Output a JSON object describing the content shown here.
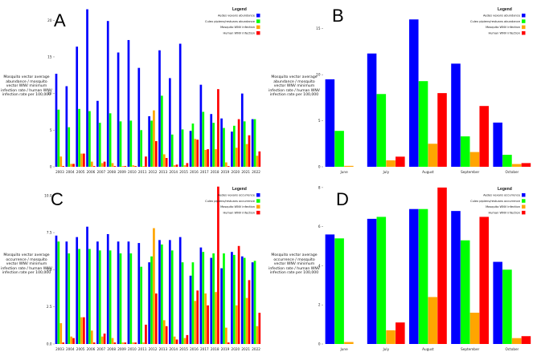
{
  "colors": {
    "aedes": "#0000ff",
    "culex": "#00ff00",
    "mosq": "#ffa500",
    "human": "#ff0000"
  },
  "legend": {
    "title": "Legend",
    "abundance_items": [
      "Aedes vexans abundance",
      "Culex pipiens/restuans abundance",
      "Mosquito WNV infection",
      "Human WNV infection"
    ],
    "occurrence_items": [
      "Aedes vexans occurrence",
      "Culex pipiens/restuans occurrence",
      "Mosquito WNV infection",
      "Human WNV infection"
    ]
  },
  "ylabels": {
    "abundance": "Mosquito vector average abundance / mosquito vector WNV minimum infection rate / human WNV infection rate per 100,000",
    "occurrence": "Mosquito vector average occurrence / mosquito vector WNV minimum infection rate / human WNV infection rate per 100,000"
  },
  "chart_data": [
    {
      "panel": "A",
      "type": "bar",
      "categories": [
        "2003",
        "2004",
        "2005",
        "2006",
        "2007",
        "2008",
        "2009",
        "2010",
        "2011",
        "2012",
        "2013",
        "2014",
        "2015",
        "2016",
        "2017",
        "2018",
        "2019",
        "2020",
        "2021",
        "2022"
      ],
      "yticks": [
        0,
        5,
        10,
        15,
        20
      ],
      "ylim": [
        0,
        22
      ],
      "series": [
        {
          "name": "Aedes vexans abundance",
          "values": [
            12.7,
            11.0,
            16.4,
            21.5,
            9.0,
            19.9,
            15.6,
            17.3,
            13.5,
            6.9,
            15.9,
            12.1,
            16.8,
            4.9,
            11.2,
            7.2,
            6.6,
            4.8,
            10.0,
            6.5
          ]
        },
        {
          "name": "Culex pipiens/restuans abundance",
          "values": [
            7.8,
            5.4,
            7.9,
            7.6,
            6.0,
            7.3,
            6.2,
            6.3,
            5.0,
            6.3,
            9.7,
            4.4,
            5.1,
            5.9,
            7.5,
            6.0,
            5.3,
            5.6,
            6.2,
            6.5
          ]
        },
        {
          "name": "Mosquito WNV infection",
          "values": [
            1.4,
            0.4,
            1.8,
            0.7,
            0.5,
            0.5,
            0.1,
            0.2,
            0.1,
            7.7,
            1.7,
            0.2,
            0.2,
            3.8,
            2.3,
            2.4,
            0.6,
            2.6,
            3.1,
            1.5
          ]
        },
        {
          "name": "Human WNV infection",
          "values": [
            0.1,
            0.4,
            1.8,
            0.1,
            0.7,
            0.1,
            0.1,
            0.1,
            1.4,
            3.5,
            1.2,
            0.3,
            0.5,
            3.7,
            2.4,
            10.6,
            0.1,
            6.5,
            4.3,
            2.1
          ]
        }
      ]
    },
    {
      "panel": "B",
      "type": "bar",
      "categories": [
        "June",
        "July",
        "August",
        "September",
        "October"
      ],
      "yticks": [
        0,
        5,
        10,
        15
      ],
      "ylim": [
        0,
        17.5
      ],
      "series": [
        {
          "name": "Aedes vexans abundance",
          "values": [
            9.5,
            12.3,
            16.0,
            11.2,
            4.8
          ]
        },
        {
          "name": "Culex pipiens/restuans abundance",
          "values": [
            3.9,
            7.9,
            9.3,
            3.3,
            1.3
          ]
        },
        {
          "name": "Mosquito WNV infection",
          "values": [
            0.1,
            0.7,
            2.5,
            1.6,
            0.3
          ]
        },
        {
          "name": "Human WNV infection",
          "values": [
            0.0,
            1.1,
            8.0,
            6.6,
            0.4
          ]
        }
      ]
    },
    {
      "panel": "C",
      "type": "bar",
      "categories": [
        "2003",
        "2004",
        "2005",
        "2006",
        "2007",
        "2008",
        "2009",
        "2010",
        "2011",
        "2012",
        "2013",
        "2014",
        "2015",
        "2016",
        "2017",
        "2018",
        "2019",
        "2020",
        "2021",
        "2022"
      ],
      "yticks": [
        0.0,
        2.5,
        5.0,
        7.5,
        10.0
      ],
      "ylim": [
        0,
        10.8
      ],
      "series": [
        {
          "name": "Aedes vexans occurrence",
          "values": [
            7.3,
            6.9,
            7.2,
            7.9,
            6.9,
            7.4,
            6.9,
            6.9,
            6.8,
            5.5,
            7.0,
            7.0,
            7.2,
            4.6,
            6.5,
            5.8,
            5.1,
            6.2,
            5.9,
            5.5
          ]
        },
        {
          "name": "Culex pipiens/restuans occurrence",
          "values": [
            6.9,
            6.1,
            6.4,
            6.4,
            6.3,
            6.3,
            6.1,
            6.1,
            5.2,
            5.9,
            6.7,
            6.3,
            5.5,
            5.5,
            6.2,
            6.1,
            6.1,
            6.0,
            5.8,
            5.6
          ]
        },
        {
          "name": "Mosquito WNV infection",
          "values": [
            1.4,
            0.5,
            1.8,
            0.9,
            0.5,
            0.4,
            0.1,
            0.1,
            0.1,
            7.8,
            1.6,
            0.5,
            0.4,
            2.9,
            3.4,
            3.5,
            1.1,
            2.6,
            3.1,
            1.2
          ]
        },
        {
          "name": "Human WNV infection",
          "values": [
            0.1,
            0.4,
            1.8,
            0.1,
            0.7,
            0.1,
            0.1,
            0.1,
            1.3,
            3.4,
            1.2,
            0.3,
            0.6,
            3.6,
            2.6,
            10.6,
            0.1,
            6.6,
            4.3,
            2.1
          ]
        }
      ]
    },
    {
      "panel": "D",
      "type": "bar",
      "categories": [
        "June",
        "July",
        "August",
        "September",
        "October"
      ],
      "yticks": [
        0,
        2,
        4,
        6,
        8
      ],
      "ylim": [
        0,
        8.2
      ],
      "series": [
        {
          "name": "Aedes vexans occurrence",
          "values": [
            5.6,
            6.4,
            6.9,
            6.8,
            4.2
          ]
        },
        {
          "name": "Culex pipiens/restuans occurrence",
          "values": [
            5.4,
            6.5,
            6.9,
            5.3,
            3.8
          ]
        },
        {
          "name": "Mosquito WNV infection",
          "values": [
            0.1,
            0.7,
            2.4,
            1.6,
            0.3
          ]
        },
        {
          "name": "Human WNV infection",
          "values": [
            0.0,
            1.1,
            8.0,
            6.5,
            0.4
          ]
        }
      ]
    }
  ]
}
